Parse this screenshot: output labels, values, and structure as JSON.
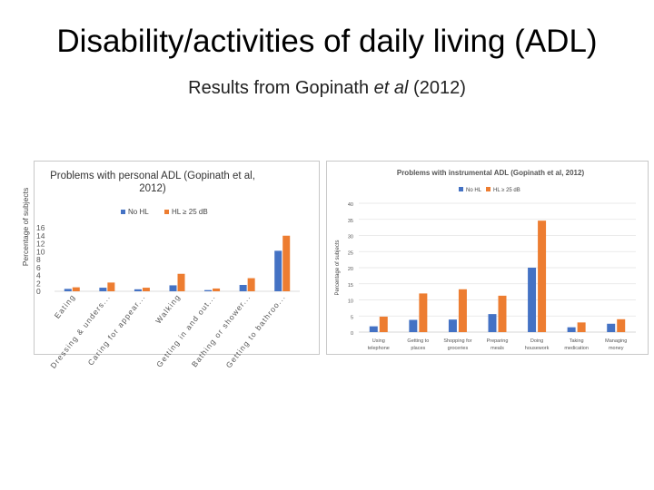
{
  "slide": {
    "title": "Disability/activities of daily living (ADL)",
    "subtitle_pre": "Results from Gopinath ",
    "subtitle_italic": "et al",
    "subtitle_post": " (2012)"
  },
  "colors": {
    "no_hl": "#4472c4",
    "hl": "#ed7d31",
    "grid": "#e3e3e3",
    "axis_text": "#444444"
  },
  "chart_data": [
    {
      "type": "bar",
      "title": "Problems with personal ADL (Gopinath et al, 2012)",
      "ylabel": "Percentage of subjects",
      "xlabel": "",
      "ylim": [
        0,
        16
      ],
      "yticks": [
        "0",
        "2",
        "4",
        "6",
        "8",
        "10",
        "12",
        "14",
        "16"
      ],
      "grid": false,
      "legend_position": "top",
      "categories": [
        "Eating",
        "Dressing & unders...",
        "Caring for appear...",
        "Walking",
        "Getting in and out...",
        "Bathing or shower...",
        "Getting to bathroo..."
      ],
      "series": [
        {
          "name": "No HL",
          "values": [
            0.6,
            0.9,
            0.5,
            1.5,
            0.3,
            1.6,
            10.2
          ]
        },
        {
          "name": "HL ≥ 25 dB",
          "values": [
            1.0,
            2.2,
            0.9,
            4.4,
            0.7,
            3.3,
            14.0
          ]
        }
      ]
    },
    {
      "type": "bar",
      "title": "Problems with instrumental ADL (Gopinath et al, 2012)",
      "ylabel": "Percentage of subjects",
      "xlabel": "",
      "ylim": [
        0,
        40
      ],
      "yticks": [
        "0",
        "5",
        "10",
        "15",
        "20",
        "25",
        "30",
        "35",
        "40"
      ],
      "grid": true,
      "legend_position": "top",
      "categories": [
        "Using telephone",
        "Getting to places",
        "Shopping for groceries",
        "Preparing meals",
        "Doing housework",
        "Taking medication",
        "Managing money"
      ],
      "series": [
        {
          "name": "No HL",
          "values": [
            1.8,
            3.8,
            3.9,
            5.6,
            20.0,
            1.5,
            2.6
          ]
        },
        {
          "name": "HL ≥ 25 dB",
          "values": [
            4.8,
            12.0,
            13.3,
            11.3,
            34.6,
            3.0,
            4.0
          ]
        }
      ]
    }
  ]
}
